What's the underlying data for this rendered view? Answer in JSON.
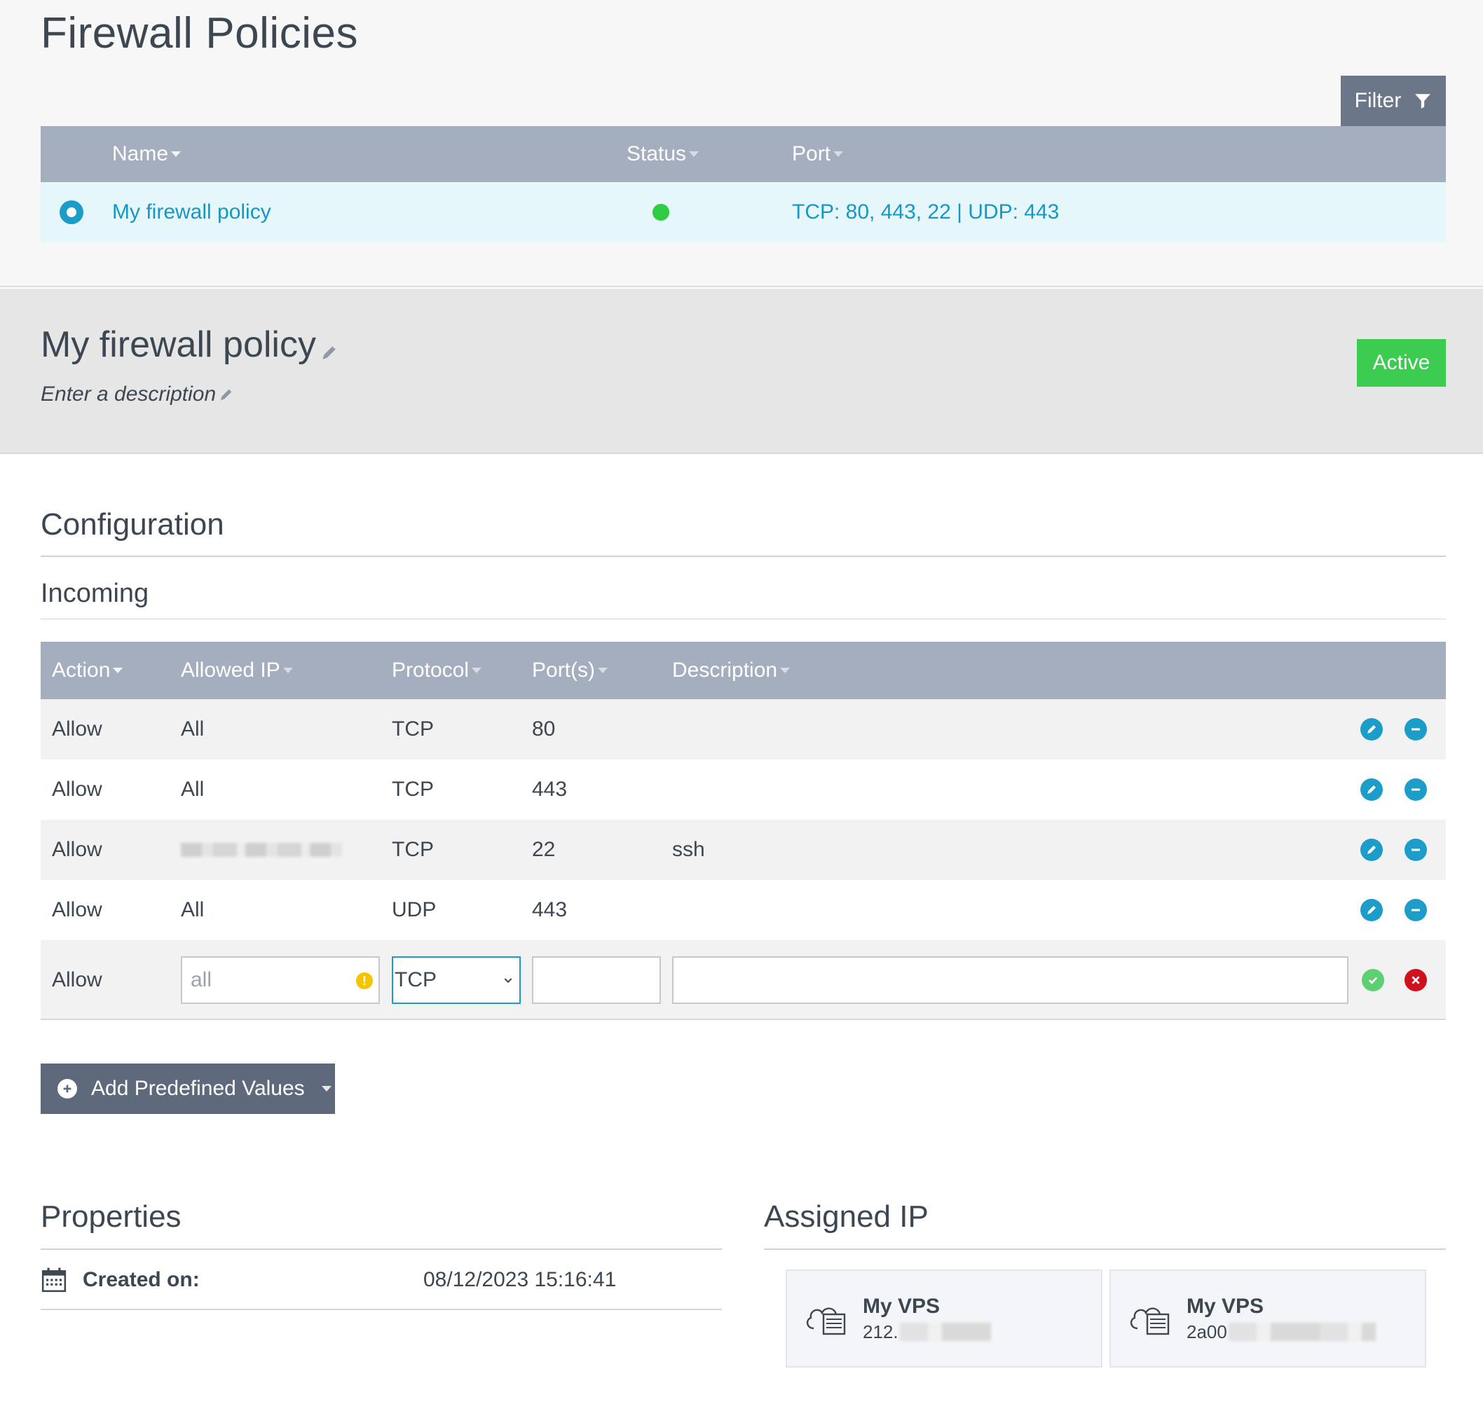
{
  "page": {
    "title": "Firewall Policies"
  },
  "filter": {
    "label": "Filter"
  },
  "policy_table": {
    "columns": [
      "Name",
      "Status",
      "Port"
    ],
    "rows": [
      {
        "name": "My firewall policy",
        "status": "active",
        "status_color": "#2ecc40",
        "ports": "TCP: 80, 443, 22 | UDP: 443"
      }
    ]
  },
  "detail": {
    "name": "My firewall policy",
    "description_placeholder": "Enter a description",
    "status_badge": "Active",
    "badge_color": "#3ccc4f"
  },
  "configuration": {
    "title": "Configuration",
    "incoming_title": "Incoming",
    "columns": [
      "Action",
      "Allowed IP",
      "Protocol",
      "Port(s)",
      "Description"
    ],
    "rules": [
      {
        "action": "Allow",
        "ip": "All",
        "protocol": "TCP",
        "ports": "80",
        "description": ""
      },
      {
        "action": "Allow",
        "ip": "All",
        "protocol": "TCP",
        "ports": "443",
        "description": ""
      },
      {
        "action": "Allow",
        "ip": "",
        "protocol": "TCP",
        "ports": "22",
        "description": "ssh"
      },
      {
        "action": "Allow",
        "ip": "All",
        "protocol": "UDP",
        "ports": "443",
        "description": ""
      }
    ],
    "new_rule": {
      "action": "Allow",
      "ip_placeholder": "all",
      "protocol": "TCP",
      "ports_value": "",
      "description_value": ""
    },
    "add_button": "Add Predefined Values"
  },
  "properties": {
    "title": "Properties",
    "created_label": "Created on:",
    "created_value": "08/12/2023 15:16:41"
  },
  "assigned_ip": {
    "title": "Assigned IP",
    "cards": [
      {
        "name": "My VPS",
        "ip": "212."
      },
      {
        "name": "My VPS",
        "ip": "2a00"
      }
    ]
  },
  "icons": {
    "filter": "funnel-icon",
    "edit": "pencil-icon",
    "remove": "minus-circle-icon",
    "confirm": "check-circle-icon",
    "cancel": "x-circle-icon",
    "warning": "exclamation-icon",
    "calendar": "calendar-icon",
    "server": "cloud-server-icon"
  },
  "colors": {
    "accent": "#1b9cc9",
    "header": "#a5aebe",
    "button_dark": "#5e6a7c"
  }
}
